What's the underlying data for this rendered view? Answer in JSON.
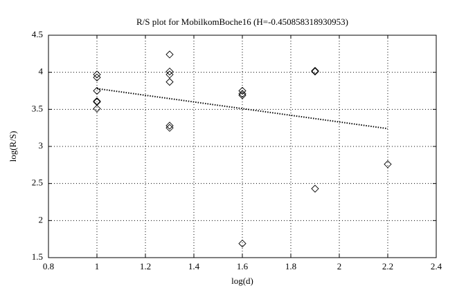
{
  "chart_data": {
    "type": "scatter",
    "title": "R/S plot for MobilkomBoche16 (H=-0.450858318930953)",
    "xlabel": "log(d)",
    "ylabel": "log(R/S)",
    "xlim": [
      0.8,
      2.4
    ],
    "ylim": [
      1.5,
      4.5
    ],
    "xticks": [
      0.8,
      1,
      1.2,
      1.4,
      1.6,
      1.8,
      2,
      2.2,
      2.4
    ],
    "yticks": [
      1.5,
      2,
      2.5,
      3,
      3.5,
      4,
      4.5
    ],
    "grid": true,
    "series": [
      {
        "mode": "markers",
        "marker": "diamond",
        "color": "#000000",
        "x": [
          1,
          1,
          1,
          1,
          1,
          1,
          1.3,
          1.3,
          1.3,
          1.3,
          1.3,
          1.3,
          1.6,
          1.6,
          1.6,
          1.6,
          1.9,
          1.9,
          1.9,
          2.2
        ],
        "values": [
          3.97,
          3.93,
          3.75,
          3.61,
          3.6,
          3.51,
          4.24,
          4.01,
          3.97,
          3.87,
          3.28,
          3.25,
          3.75,
          3.71,
          3.69,
          1.69,
          4.02,
          4.01,
          2.43,
          2.76
        ]
      },
      {
        "mode": "line",
        "line_style": "dotted",
        "color": "#000000",
        "x": [
          1,
          2.2
        ],
        "values": [
          3.78,
          3.24
        ]
      }
    ]
  }
}
